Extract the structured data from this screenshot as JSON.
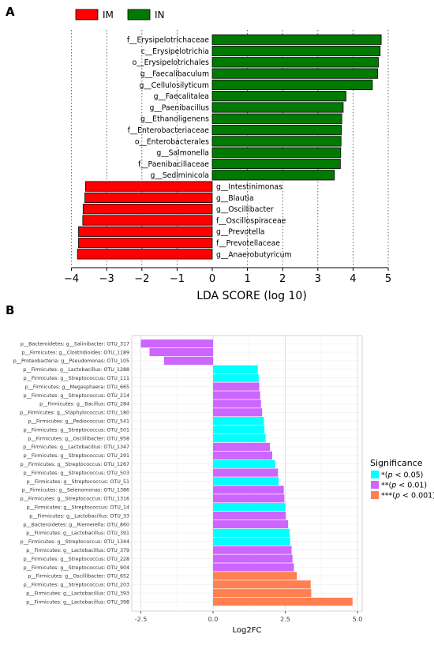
{
  "chart_data": [
    {
      "panel_label": "A",
      "type": "bar",
      "orientation": "horizontal",
      "xlabel": "LDA SCORE (log 10)",
      "xlim": [
        -4,
        5
      ],
      "xticks": [
        -4,
        -3,
        -2,
        -1,
        0,
        1,
        2,
        3,
        4,
        5
      ],
      "grid": "vertical dotted lines at integer ticks",
      "legend_position": "top-left",
      "legend": [
        {
          "name": "IM",
          "color": "#ff0000"
        },
        {
          "name": "IN",
          "color": "#007a00"
        }
      ],
      "bars": [
        {
          "label": "f__Erysipelotrichaceae",
          "value": 4.8,
          "group": "IN"
        },
        {
          "label": "c__Erysipelotrichia",
          "value": 4.77,
          "group": "IN"
        },
        {
          "label": "o__Erysipelotrichales",
          "value": 4.72,
          "group": "IN"
        },
        {
          "label": "g__Faecalibaculum",
          "value": 4.7,
          "group": "IN"
        },
        {
          "label": "g__Cellulosilyticum",
          "value": 4.55,
          "group": "IN"
        },
        {
          "label": "g__Faecalitalea",
          "value": 3.8,
          "group": "IN"
        },
        {
          "label": "g__Paenibacillus",
          "value": 3.72,
          "group": "IN"
        },
        {
          "label": "g__Ethanoligenens",
          "value": 3.68,
          "group": "IN"
        },
        {
          "label": "f__Enterobacteriaceae",
          "value": 3.67,
          "group": "IN"
        },
        {
          "label": "o__Enterobacterales",
          "value": 3.66,
          "group": "IN"
        },
        {
          "label": "g__Salmonella",
          "value": 3.65,
          "group": "IN"
        },
        {
          "label": "f__Paenibacillaceae",
          "value": 3.64,
          "group": "IN"
        },
        {
          "label": "g__Sediminicola",
          "value": 3.47,
          "group": "IN"
        },
        {
          "label": "g__Intestinimonas",
          "value": -3.6,
          "group": "IM"
        },
        {
          "label": "g__Blautia",
          "value": -3.62,
          "group": "IM"
        },
        {
          "label": "g__Oscillibacter",
          "value": -3.67,
          "group": "IM"
        },
        {
          "label": "f__Oscillospiraceae",
          "value": -3.68,
          "group": "IM"
        },
        {
          "label": "g__Prevotella",
          "value": -3.8,
          "group": "IM"
        },
        {
          "label": "f__Prevotellaceae",
          "value": -3.8,
          "group": "IM"
        },
        {
          "label": "g__Anaerobutyricum",
          "value": -3.83,
          "group": "IM"
        }
      ]
    },
    {
      "panel_label": "B",
      "type": "bar",
      "orientation": "horizontal",
      "xlabel": "Log2FC",
      "xlim": [
        -2.5,
        5.0
      ],
      "xticks": [
        -2.5,
        0.0,
        2.5,
        5.0
      ],
      "grid": true,
      "legend_position": "right",
      "legend_title": "Significance",
      "legend": [
        {
          "key": "*",
          "label_prefix": "*",
          "label_p": "p",
          "label_rest": " < 0.05)",
          "color": "#00ffff"
        },
        {
          "key": "**",
          "label_prefix": "**",
          "label_p": "p",
          "label_rest": " < 0.01)",
          "color": "#cc66ff"
        },
        {
          "key": "***",
          "label_prefix": "***",
          "label_p": "p",
          "label_rest": " < 0.001)",
          "color": "#ff7f50"
        }
      ],
      "bars": [
        {
          "label": "p__Bacteroidetes: g__Salinibacter: OTU_317",
          "value": -2.5,
          "sig": "**"
        },
        {
          "label": "p__Firmicutes: g__Clostridioides: OTU_1189",
          "value": -2.2,
          "sig": "**"
        },
        {
          "label": "p__Proteobacteria: g__Pseudomonas: OTU_105",
          "value": -1.7,
          "sig": "**"
        },
        {
          "label": "p__Firmicutes: g__Lactobacillus: OTU_1288",
          "value": 1.55,
          "sig": "*"
        },
        {
          "label": "p__Firmicutes: g__Streptococcus: OTU_111",
          "value": 1.58,
          "sig": "*"
        },
        {
          "label": "p__Firmicutes: g__Megasphaera: OTU_665",
          "value": 1.6,
          "sig": "**"
        },
        {
          "label": "p__Firmicutes: g__Streptococcus: OTU_214",
          "value": 1.63,
          "sig": "**"
        },
        {
          "label": "p__Firmicutes: g__Bacillus: OTU_284",
          "value": 1.66,
          "sig": "**"
        },
        {
          "label": "p__Firmicutes: g__Staphylococcus: OTU_180",
          "value": 1.7,
          "sig": "**"
        },
        {
          "label": "p__Firmicutes: g__Pediococcus: OTU_541",
          "value": 1.76,
          "sig": "*"
        },
        {
          "label": "p__Firmicutes: g__Streptococcus: OTU_501",
          "value": 1.78,
          "sig": "*"
        },
        {
          "label": "p__Firmicutes: g__Oscillibacter: OTU_958",
          "value": 1.82,
          "sig": "*"
        },
        {
          "label": "p__Firmicutes: g__Lactobacillus: OTU_1347",
          "value": 1.97,
          "sig": "**"
        },
        {
          "label": "p__Firmicutes: g__Streptococcus: OTU_291",
          "value": 2.05,
          "sig": "**"
        },
        {
          "label": "p__Firmicutes: g__Streptococcus: OTU_1267",
          "value": 2.15,
          "sig": "*"
        },
        {
          "label": "p__Firmicutes: g__Streptococcus: OTU_503",
          "value": 2.25,
          "sig": "**"
        },
        {
          "label": "p__Firmicutes: g__Streptococcus: OTU_51",
          "value": 2.27,
          "sig": "*"
        },
        {
          "label": "p__Firmicutes: g__Selenomonas: OTU_1386",
          "value": 2.45,
          "sig": "**"
        },
        {
          "label": "p__Firmicutes: g__Streptococcus: OTU_1316",
          "value": 2.47,
          "sig": "**"
        },
        {
          "label": "p__Firmicutes: g__Streptococcus: OTU_14",
          "value": 2.5,
          "sig": "*"
        },
        {
          "label": "p__Firmicutes: g__Lactobacillus: OTU_33",
          "value": 2.52,
          "sig": "**"
        },
        {
          "label": "p__Bacteroidetes: g__Riemerella: OTU_860",
          "value": 2.6,
          "sig": "**"
        },
        {
          "label": "p__Firmicutes: g__Lactobacillus: OTU_391",
          "value": 2.65,
          "sig": "*"
        },
        {
          "label": "p__Firmicutes: g__Streptococcus: OTU_1344",
          "value": 2.67,
          "sig": "*"
        },
        {
          "label": "p__Firmicutes: g__Lactobacillus: OTU_379",
          "value": 2.72,
          "sig": "**"
        },
        {
          "label": "p__Firmicutes: g__Streptococcus: OTU_228",
          "value": 2.75,
          "sig": "**"
        },
        {
          "label": "p__Firmicutes: g__Streptococcus: OTU_904",
          "value": 2.8,
          "sig": "**"
        },
        {
          "label": "p__Firmicutes: g__Oscillibacter: OTU_652",
          "value": 2.9,
          "sig": "***"
        },
        {
          "label": "p__Firmicutes: g__Streptococcus: OTU_203",
          "value": 3.38,
          "sig": "***"
        },
        {
          "label": "p__Firmicutes: g__Lactobacillus: OTU_393",
          "value": 3.4,
          "sig": "***"
        },
        {
          "label": "p__Firmicutes: g__Lactobacillus: OTU_398",
          "value": 4.83,
          "sig": "***"
        }
      ]
    }
  ]
}
